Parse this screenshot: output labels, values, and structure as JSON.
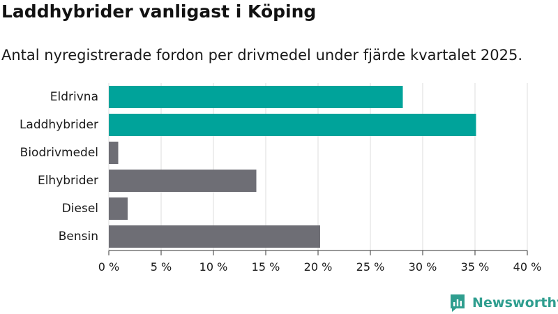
{
  "title": "Laddhybrider vanligast i Köping",
  "subtitle": "Antal nyregistrerade fordon per drivmedel under fjärde kvartalet 2025.",
  "brand": {
    "name": "Newsworthy",
    "icon": "newsworthy-logo-icon"
  },
  "colors": {
    "highlight": "#00a39a",
    "default": "#6e6e75",
    "grid": "#dcdcdc",
    "text": "#1a1a1a",
    "brand": "#2f9e8f"
  },
  "chart_data": {
    "type": "bar",
    "orientation": "horizontal",
    "categories": [
      "Eldrivna",
      "Laddhybrider",
      "Biodrivmedel",
      "Elhybrider",
      "Diesel",
      "Bensin"
    ],
    "values": [
      28.1,
      35.1,
      0.9,
      14.1,
      1.8,
      20.2
    ],
    "highlighted": [
      "Eldrivna",
      "Laddhybrider"
    ],
    "xlim": [
      0,
      40
    ],
    "xticks": [
      0,
      5,
      10,
      15,
      20,
      25,
      30,
      35,
      40
    ],
    "xtick_labels": [
      "0 %",
      "5 %",
      "10 %",
      "15 %",
      "20 %",
      "25 %",
      "30 %",
      "35 %",
      "40 %"
    ],
    "grid": true,
    "xlabel": "",
    "ylabel": ""
  }
}
